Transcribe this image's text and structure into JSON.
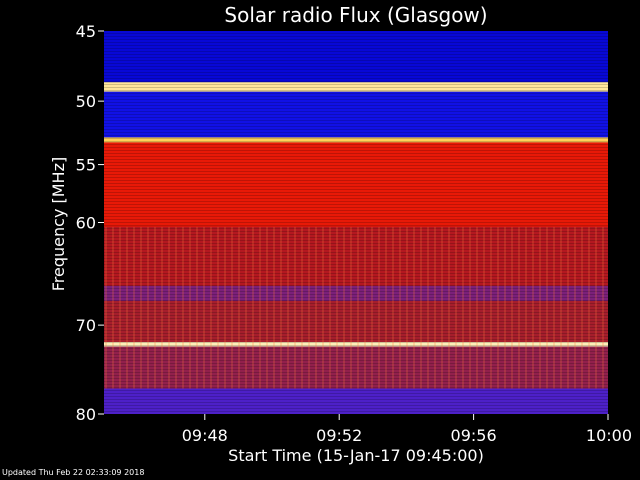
{
  "chart_data": {
    "type": "heatmap",
    "title": "Solar radio Flux (Glasgow)",
    "xlabel": "Start Time (15-Jan-17 09:45:00)",
    "ylabel": "Frequency [MHz]",
    "x_range": [
      "09:45:00",
      "10:00:00"
    ],
    "y_range_mhz": [
      45,
      80
    ],
    "x_ticks": [
      "09:48",
      "09:52",
      "09:56",
      "10:00"
    ],
    "y_ticks": [
      45,
      50,
      55,
      60,
      70,
      80
    ],
    "colormap": [
      "#000050",
      "#0000c8",
      "#2020ff",
      "#6020b0",
      "#a02030",
      "#c81010",
      "#ff2000",
      "#ff8000",
      "#ffd860",
      "#ffffff"
    ],
    "bands": [
      {
        "f_start": 45.0,
        "f_end": 48.6,
        "intensity": 0.14
      },
      {
        "f_start": 48.6,
        "f_end": 49.3,
        "intensity": 0.93
      },
      {
        "f_start": 49.3,
        "f_end": 52.8,
        "intensity": 0.17
      },
      {
        "f_start": 52.8,
        "f_end": 53.2,
        "intensity": 0.88
      },
      {
        "f_start": 53.2,
        "f_end": 60.4,
        "intensity": 0.62
      },
      {
        "f_start": 60.4,
        "f_end": 66.0,
        "intensity": 0.5
      },
      {
        "f_start": 66.0,
        "f_end": 67.5,
        "intensity": 0.38
      },
      {
        "f_start": 67.5,
        "f_end": 71.8,
        "intensity": 0.46
      },
      {
        "f_start": 71.8,
        "f_end": 72.3,
        "intensity": 0.95
      },
      {
        "f_start": 72.3,
        "f_end": 77.0,
        "intensity": 0.42
      },
      {
        "f_start": 77.0,
        "f_end": 80.0,
        "intensity": 0.3
      }
    ],
    "grid": false
  },
  "footer": {
    "updated": "Updated Thu Feb 22 02:33:09 2018"
  }
}
